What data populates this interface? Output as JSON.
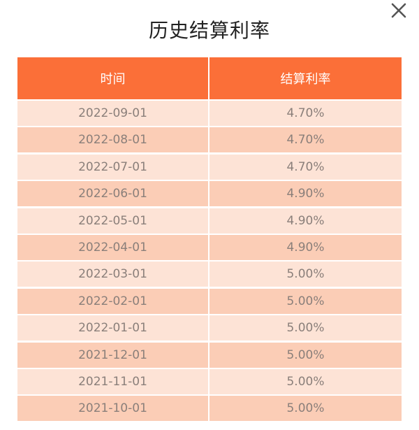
{
  "dialog": {
    "title": "历史结算利率"
  },
  "table": {
    "headers": [
      "时间",
      "结算利率"
    ],
    "rows": [
      {
        "date": "2022-09-01",
        "rate": "4.70%"
      },
      {
        "date": "2022-08-01",
        "rate": "4.70%"
      },
      {
        "date": "2022-07-01",
        "rate": "4.70%"
      },
      {
        "date": "2022-06-01",
        "rate": "4.90%"
      },
      {
        "date": "2022-05-01",
        "rate": "4.90%"
      },
      {
        "date": "2022-04-01",
        "rate": "4.90%"
      },
      {
        "date": "2022-03-01",
        "rate": "5.00%"
      },
      {
        "date": "2022-02-01",
        "rate": "5.00%"
      },
      {
        "date": "2022-01-01",
        "rate": "5.00%"
      },
      {
        "date": "2021-12-01",
        "rate": "5.00%"
      },
      {
        "date": "2021-11-01",
        "rate": "5.00%"
      },
      {
        "date": "2021-10-01",
        "rate": "5.00%"
      }
    ]
  },
  "colors": {
    "header": "#fb6f38",
    "row_light": "#fde3d6",
    "row_dark": "#fbcdb6",
    "cell_text": "#8a7f7a"
  },
  "icons": {
    "close": "close-icon"
  }
}
